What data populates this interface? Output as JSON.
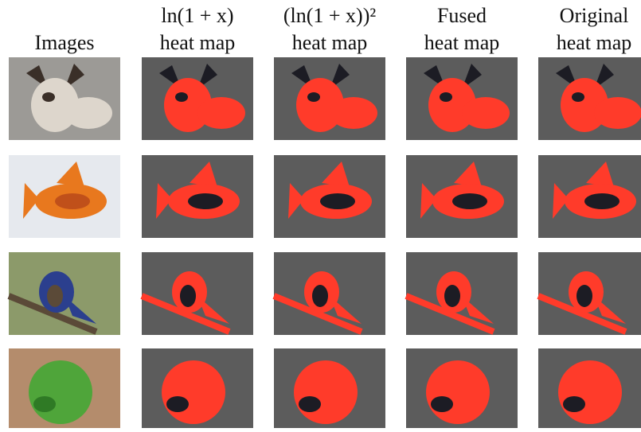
{
  "columns": [
    {
      "lines": [
        "Images"
      ]
    },
    {
      "lines": [
        "ln(1 + x)",
        "heat map"
      ]
    },
    {
      "lines": [
        "(ln(1 + x))²",
        "heat map"
      ]
    },
    {
      "lines": [
        "Fused",
        "heat map"
      ]
    },
    {
      "lines": [
        "Original",
        "heat map"
      ]
    }
  ]
}
